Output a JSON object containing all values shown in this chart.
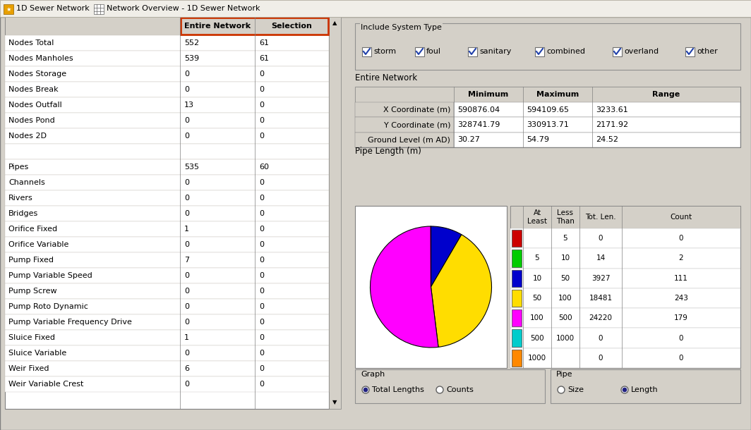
{
  "bg_color": "#D4D0C8",
  "white": "#FFFFFF",
  "gray_header": "#E8E4DC",
  "title_bar_bg": "#ECE9D8",
  "left_table": {
    "col_headers": [
      "",
      "Entire Network",
      "Selection"
    ],
    "header_highlight_color": "#CC3300",
    "rows": [
      [
        "Nodes Total",
        "552",
        "61"
      ],
      [
        "Nodes Manholes",
        "539",
        "61"
      ],
      [
        "Nodes Storage",
        "0",
        "0"
      ],
      [
        "Nodes Break",
        "0",
        "0"
      ],
      [
        "Nodes Outfall",
        "13",
        "0"
      ],
      [
        "Nodes Pond",
        "0",
        "0"
      ],
      [
        "Nodes 2D",
        "0",
        "0"
      ],
      [
        "",
        "",
        ""
      ],
      [
        "Pipes",
        "535",
        "60"
      ],
      [
        "Channels",
        "0",
        "0"
      ],
      [
        "Rivers",
        "0",
        "0"
      ],
      [
        "Bridges",
        "0",
        "0"
      ],
      [
        "Orifice Fixed",
        "1",
        "0"
      ],
      [
        "Orifice Variable",
        "0",
        "0"
      ],
      [
        "Pump Fixed",
        "7",
        "0"
      ],
      [
        "Pump Variable Speed",
        "0",
        "0"
      ],
      [
        "Pump Screw",
        "0",
        "0"
      ],
      [
        "Pump Roto Dynamic",
        "0",
        "0"
      ],
      [
        "Pump Variable Frequency Drive",
        "0",
        "0"
      ],
      [
        "Sluice Fixed",
        "1",
        "0"
      ],
      [
        "Sluice Variable",
        "0",
        "0"
      ],
      [
        "Weir Fixed",
        "6",
        "0"
      ],
      [
        "Weir Variable Crest",
        "0",
        "0"
      ]
    ]
  },
  "checkboxes": [
    "storm",
    "foul",
    "sanitary",
    "combined",
    "overland",
    "other"
  ],
  "coord_table": {
    "col_headers": [
      "",
      "Minimum",
      "Maximum",
      "Range"
    ],
    "rows": [
      [
        "X Coordinate (m)",
        "590876.04",
        "594109.65",
        "3233.61"
      ],
      [
        "Y Coordinate (m)",
        "328741.79",
        "330913.71",
        "2171.92"
      ],
      [
        "Ground Level (m AD)",
        "30.27",
        "54.79",
        "24.52"
      ]
    ]
  },
  "pipe_length_label": "Pipe Length (m)",
  "pie_data": [
    3927,
    18481,
    24220,
    14
  ],
  "pie_colors": [
    "#0000CC",
    "#FFDD00",
    "#FF00FF",
    "#00CC00"
  ],
  "pipe_table": {
    "col_headers": [
      "At\nLeast",
      "Less\nThan",
      "Tot. Len.",
      "Count"
    ],
    "color_col": [
      "#CC0000",
      "#00CC00",
      "#0000CC",
      "#FFDD00",
      "#FF00FF",
      "#00CCCC",
      "#FF8800"
    ],
    "rows": [
      [
        "",
        "5",
        "0",
        "0"
      ],
      [
        "5",
        "10",
        "14",
        "2"
      ],
      [
        "10",
        "50",
        "3927",
        "111"
      ],
      [
        "50",
        "100",
        "18481",
        "243"
      ],
      [
        "100",
        "500",
        "24220",
        "179"
      ],
      [
        "500",
        "1000",
        "0",
        "0"
      ],
      [
        "1000",
        "",
        "0",
        "0"
      ]
    ]
  }
}
